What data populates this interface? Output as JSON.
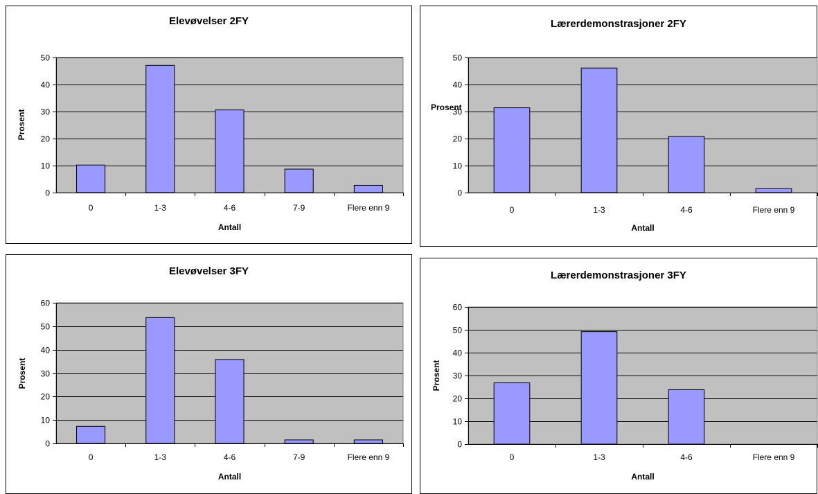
{
  "chart_data": [
    {
      "type": "bar",
      "title": "Elevøvelser 2FY",
      "xlabel": "Antall",
      "ylabel": "Prosent",
      "categories": [
        "0",
        "1-3",
        "4-6",
        "7-9",
        "Flere enn 9"
      ],
      "values": [
        10.2,
        47.1,
        30.6,
        8.7,
        2.7
      ],
      "ylim": [
        0,
        50
      ],
      "yticks": [
        0,
        10,
        20,
        30,
        40,
        50
      ],
      "grid": true,
      "bar_color": "#9999ff",
      "plot_bg": "#c0c0c0"
    },
    {
      "type": "bar",
      "title": "Lærerdemonstrasjoner 2FY",
      "xlabel": "Antall",
      "ylabel": "Prosent",
      "categories": [
        "0",
        "1-3",
        "4-6",
        "Flere enn 9"
      ],
      "values": [
        31.4,
        46.1,
        20.8,
        1.5
      ],
      "ylim": [
        0,
        50
      ],
      "yticks": [
        0,
        10,
        20,
        30,
        40,
        50
      ],
      "grid": true,
      "bar_color": "#9999ff",
      "plot_bg": "#c0c0c0"
    },
    {
      "type": "bar",
      "title": "Elevøvelser 3FY",
      "xlabel": "Antall",
      "ylabel": "Prosent",
      "categories": [
        "0",
        "1-3",
        "4-6",
        "7-9",
        "Flere enn 9"
      ],
      "values": [
        7.3,
        53.7,
        35.8,
        1.5,
        1.5
      ],
      "ylim": [
        0,
        60
      ],
      "yticks": [
        0,
        10,
        20,
        30,
        40,
        50,
        60
      ],
      "grid": true,
      "bar_color": "#9999ff",
      "plot_bg": "#c0c0c0"
    },
    {
      "type": "bar",
      "title": "Lærerdemonstrasjoner 3FY",
      "xlabel": "Antall",
      "ylabel": "Prosent",
      "categories": [
        "0",
        "1-3",
        "4-6",
        "Flere enn 9"
      ],
      "values": [
        26.8,
        49.2,
        23.8,
        0
      ],
      "ylim": [
        0,
        60
      ],
      "yticks": [
        0,
        10,
        20,
        30,
        40,
        50,
        60
      ],
      "grid": true,
      "bar_color": "#9999ff",
      "plot_bg": "#c0c0c0"
    }
  ]
}
